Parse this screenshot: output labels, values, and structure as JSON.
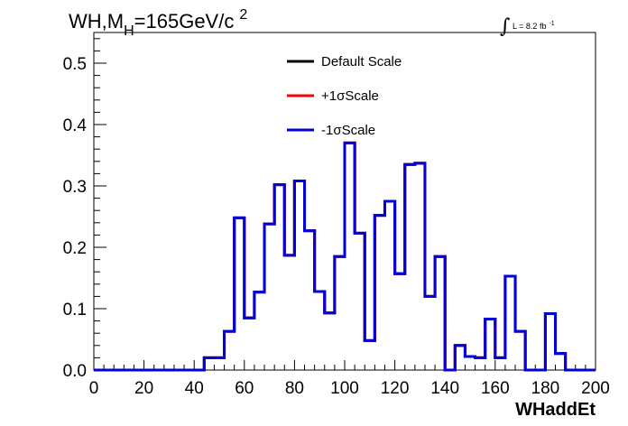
{
  "chart_data": {
    "type": "line",
    "title_main": "WH,M",
    "title_sub": "H",
    "title_rest": "=165GeV/c",
    "title_sup": "2",
    "luminosity": {
      "integral_symbol": "∫",
      "label": "L = 8.2 fb",
      "sup": "-1"
    },
    "xlabel": "WHaddEt",
    "ylabel": "",
    "xlim": [
      0,
      200
    ],
    "ylim": [
      0,
      0.55
    ],
    "x_ticks": [
      0,
      20,
      40,
      60,
      80,
      100,
      120,
      140,
      160,
      180,
      200
    ],
    "y_ticks": [
      0.0,
      0.1,
      0.2,
      0.3,
      0.4,
      0.5
    ],
    "y_tick_labels": [
      "0.0",
      "0.1",
      "0.2",
      "0.3",
      "0.4",
      "0.5"
    ],
    "grid": false,
    "legend_position": "top-center",
    "bin_edges": [
      0,
      4,
      8,
      12,
      16,
      20,
      24,
      28,
      32,
      36,
      40,
      44,
      48,
      52,
      56,
      60,
      64,
      68,
      72,
      76,
      80,
      84,
      88,
      92,
      96,
      100,
      104,
      108,
      112,
      116,
      120,
      124,
      128,
      132,
      136,
      140,
      144,
      148,
      152,
      156,
      160,
      164,
      168,
      172,
      176,
      180,
      184,
      188,
      192,
      196,
      200
    ],
    "series": [
      {
        "name": "Default Scale",
        "color": "#000000",
        "values": [
          0,
          0,
          0,
          0,
          0,
          0,
          0,
          0,
          0,
          0,
          0,
          0.02,
          0.02,
          0.063,
          0.248,
          0.085,
          0.127,
          0.238,
          0.302,
          0.187,
          0.308,
          0.227,
          0.128,
          0.093,
          0.185,
          0.37,
          0.223,
          0.048,
          0.252,
          0.275,
          0.157,
          0.335,
          0.337,
          0.12,
          0.185,
          0,
          0.04,
          0.022,
          0.02,
          0.083,
          0.02,
          0.153,
          0.063,
          0,
          0,
          0.092,
          0.027,
          0,
          0,
          0,
          0
        ]
      },
      {
        "name": "+1σScale",
        "color": "#ff0000",
        "values": [
          0,
          0,
          0,
          0,
          0,
          0,
          0,
          0,
          0,
          0,
          0,
          0.02,
          0.02,
          0.063,
          0.248,
          0.085,
          0.127,
          0.238,
          0.302,
          0.187,
          0.308,
          0.227,
          0.128,
          0.093,
          0.185,
          0.37,
          0.223,
          0.048,
          0.252,
          0.275,
          0.157,
          0.335,
          0.337,
          0.12,
          0.185,
          0,
          0.04,
          0.022,
          0.02,
          0.083,
          0.02,
          0.153,
          0.063,
          0,
          0,
          0.092,
          0.027,
          0,
          0,
          0,
          0
        ]
      },
      {
        "name": "-1σScale",
        "color": "#0000dd",
        "values": [
          0,
          0,
          0,
          0,
          0,
          0,
          0,
          0,
          0,
          0,
          0,
          0.02,
          0.02,
          0.063,
          0.248,
          0.085,
          0.127,
          0.238,
          0.302,
          0.187,
          0.308,
          0.227,
          0.128,
          0.093,
          0.185,
          0.37,
          0.223,
          0.048,
          0.252,
          0.275,
          0.157,
          0.335,
          0.337,
          0.12,
          0.185,
          0,
          0.04,
          0.022,
          0.02,
          0.083,
          0.02,
          0.153,
          0.063,
          0,
          0,
          0.092,
          0.027,
          0,
          0,
          0,
          0
        ]
      }
    ]
  }
}
